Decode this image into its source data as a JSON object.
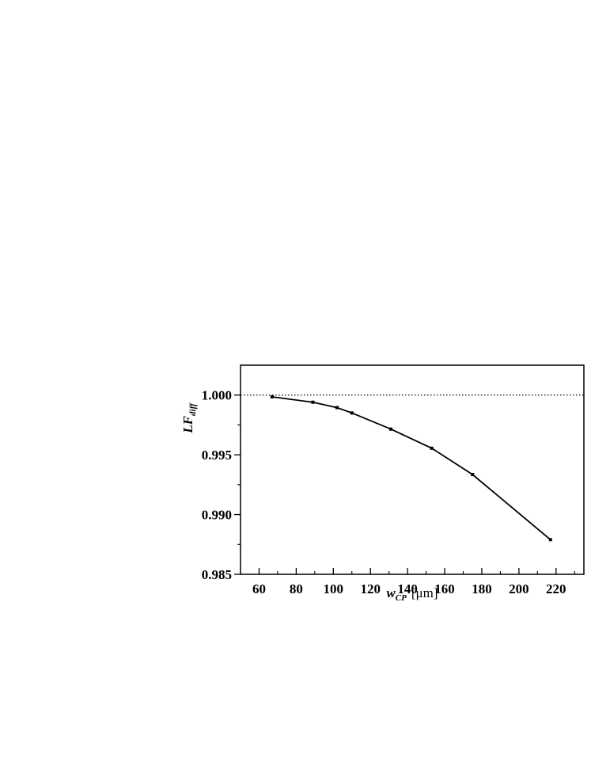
{
  "chart_data": {
    "type": "line",
    "title": "",
    "xlabel": {
      "symbol": "w",
      "subscript": "CP",
      "unit": "[μm]"
    },
    "ylabel": {
      "symbol": "LF",
      "subscript": "diff"
    },
    "xlim": [
      50,
      235
    ],
    "ylim": [
      0.985,
      1.0025
    ],
    "xticks": [
      "60",
      "80",
      "100",
      "120",
      "140",
      "160",
      "180",
      "200",
      "220"
    ],
    "yticks": [
      "0.985",
      "0.990",
      "0.995",
      "1.000"
    ],
    "reference_line": {
      "y": 1.0,
      "style": "dotted"
    },
    "grid": false,
    "series": [
      {
        "x": [
          67,
          89,
          102,
          110,
          131,
          153,
          175,
          217
        ],
        "y": [
          0.99985,
          0.9994,
          0.99895,
          0.9985,
          0.99715,
          0.99555,
          0.99335,
          0.9879
        ]
      }
    ]
  }
}
